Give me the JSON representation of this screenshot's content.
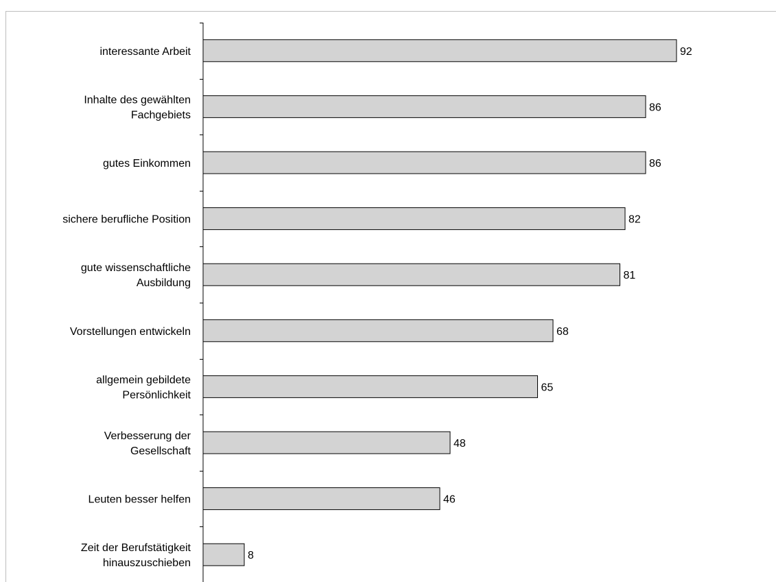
{
  "chart_data": {
    "type": "bar",
    "orientation": "horizontal",
    "title": "",
    "xlabel": "",
    "ylabel": "",
    "categories": [
      [
        "interessante Arbeit"
      ],
      [
        "Inhalte des gewählten",
        "Fachgebiets"
      ],
      [
        "gutes Einkommen"
      ],
      [
        "sichere berufliche Position"
      ],
      [
        "gute wissenschaftliche",
        "Ausbildung"
      ],
      [
        "Vorstellungen entwickeln"
      ],
      [
        "allgemein gebildete",
        "Persönlichkeit"
      ],
      [
        "Verbesserung der",
        "Gesellschaft"
      ],
      [
        "Leuten besser helfen"
      ],
      [
        "Zeit der Berufstätigkeit",
        "hinauszuschieben"
      ]
    ],
    "values": [
      92,
      86,
      86,
      82,
      81,
      68,
      65,
      48,
      46,
      8
    ],
    "xlim": [
      0,
      100
    ],
    "grid": false,
    "legend": "none",
    "bar_color": "#d3d3d3",
    "bar_edge_color": "#000000"
  }
}
